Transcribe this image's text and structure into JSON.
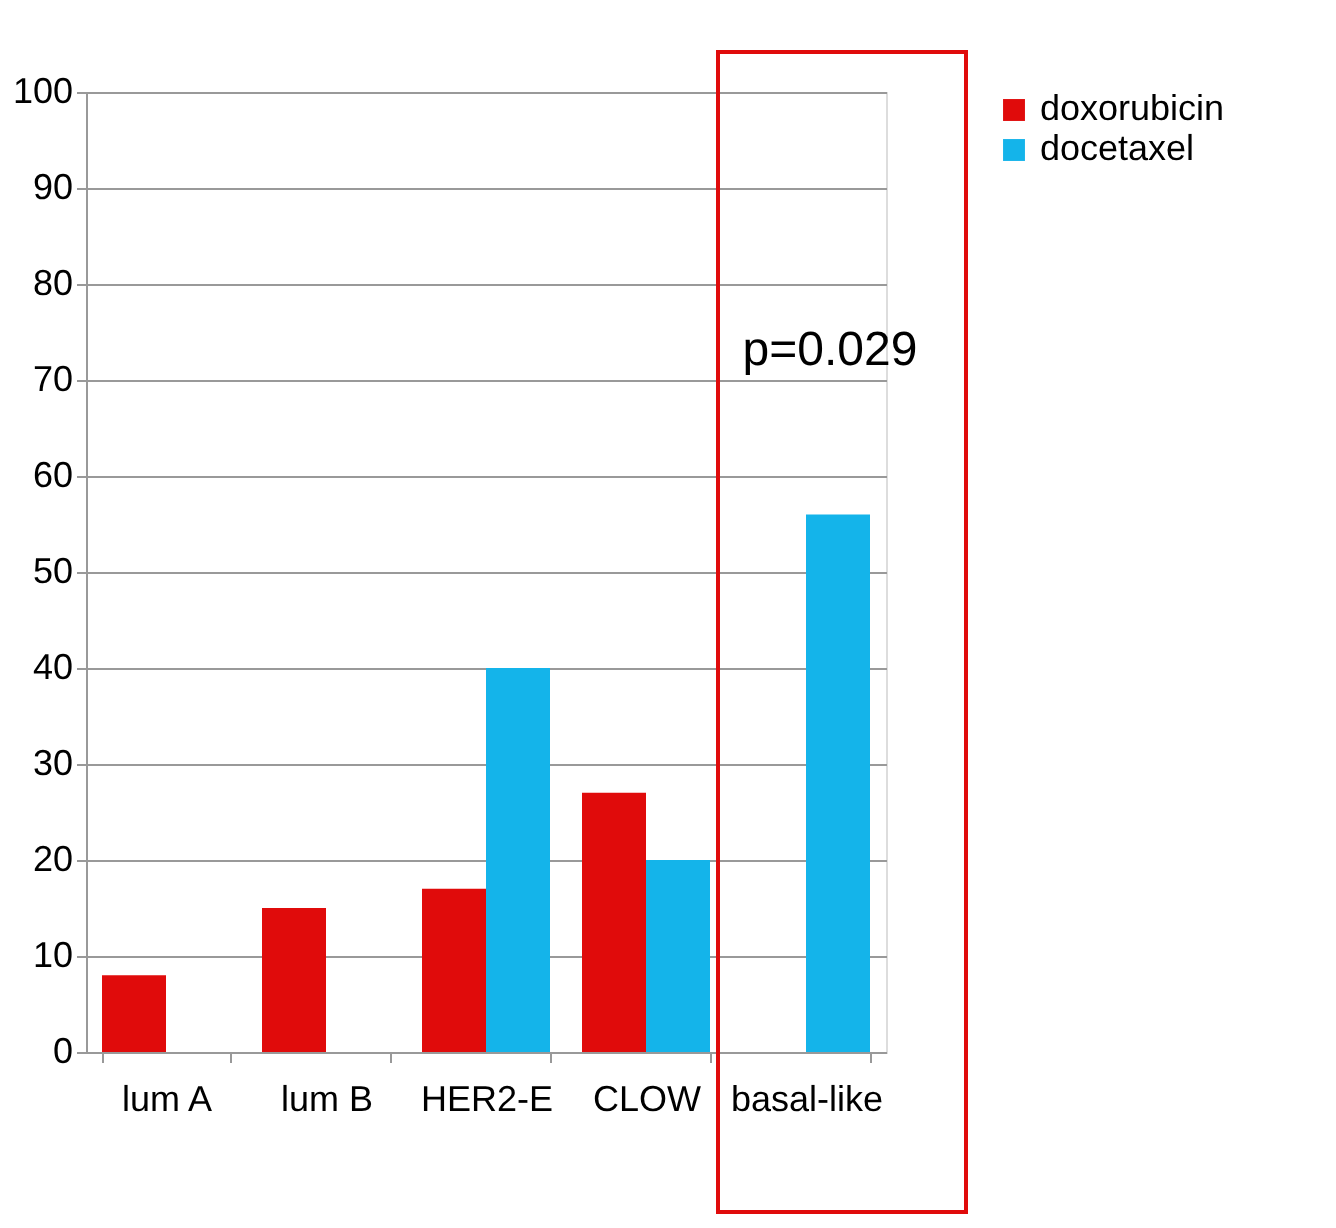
{
  "chart_data": {
    "type": "bar",
    "categories": [
      "lum A",
      "lum B",
      "HER2-E",
      "CLOW",
      "basal-like"
    ],
    "series": [
      {
        "name": "doxorubicin",
        "color": "#e00b0b",
        "values": [
          8,
          15,
          17,
          27,
          0
        ]
      },
      {
        "name": "docetaxel",
        "color": "#14b4ea",
        "values": [
          0,
          0,
          40,
          20,
          56
        ]
      }
    ],
    "ylim": [
      0,
      100
    ],
    "yticks": [
      0,
      10,
      20,
      30,
      40,
      50,
      60,
      70,
      80,
      90,
      100
    ],
    "grid": "y",
    "legend": "right",
    "annotations": [
      "p=0.029"
    ]
  }
}
